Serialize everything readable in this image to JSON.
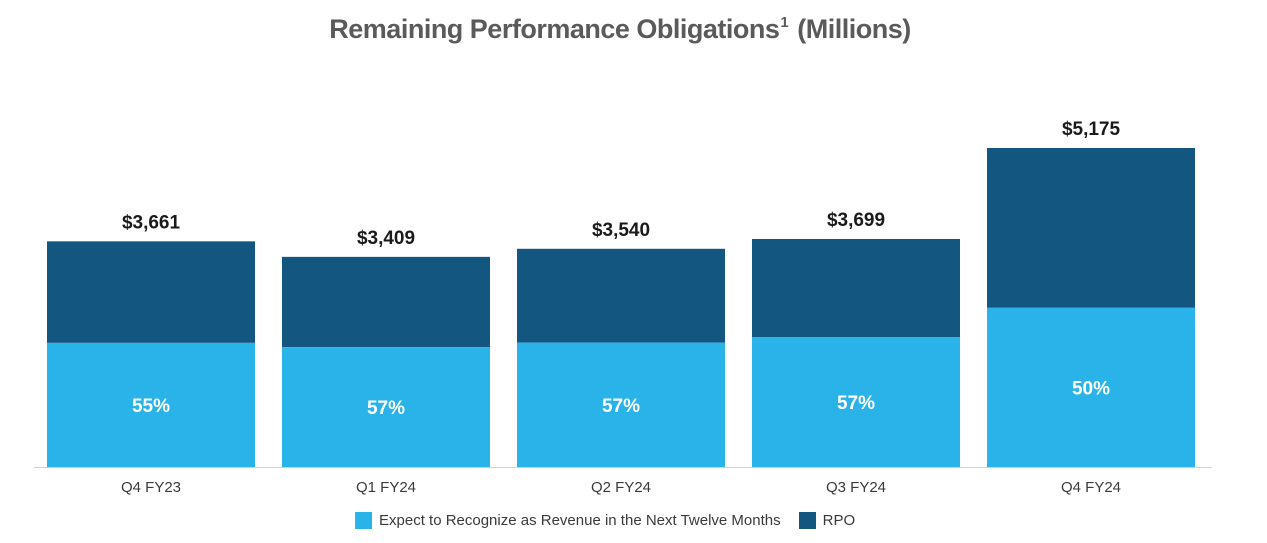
{
  "chart_data": {
    "type": "bar",
    "stacked": true,
    "title": "Remaining Performance Obligations",
    "title_footnote": "1",
    "title_unit": "(Millions)",
    "xlabel": "",
    "ylabel": "",
    "categories": [
      "Q4 FY23",
      "Q1 FY24",
      "Q2 FY24",
      "Q3 FY24",
      "Q4 FY24"
    ],
    "totals": [
      3661,
      3409,
      3540,
      3699,
      5175
    ],
    "total_labels": [
      "$3,661",
      "$3,409",
      "$3,540",
      "$3,699",
      "$5,175"
    ],
    "percent_next_twelve_months": [
      55,
      57,
      57,
      57,
      50
    ],
    "percent_labels": [
      "55%",
      "57%",
      "57%",
      "57%",
      "50%"
    ],
    "ylim": [
      0,
      5600
    ],
    "grid": false,
    "legend_position": "bottom",
    "series": [
      {
        "name": "Expect to Recognize as Revenue in the Next Twelve Months",
        "color": "#29b3e8"
      },
      {
        "name": "RPO",
        "color": "#135680"
      }
    ]
  },
  "colors": {
    "baseline": "#d0d0d0",
    "title": "#5a5a5a"
  }
}
